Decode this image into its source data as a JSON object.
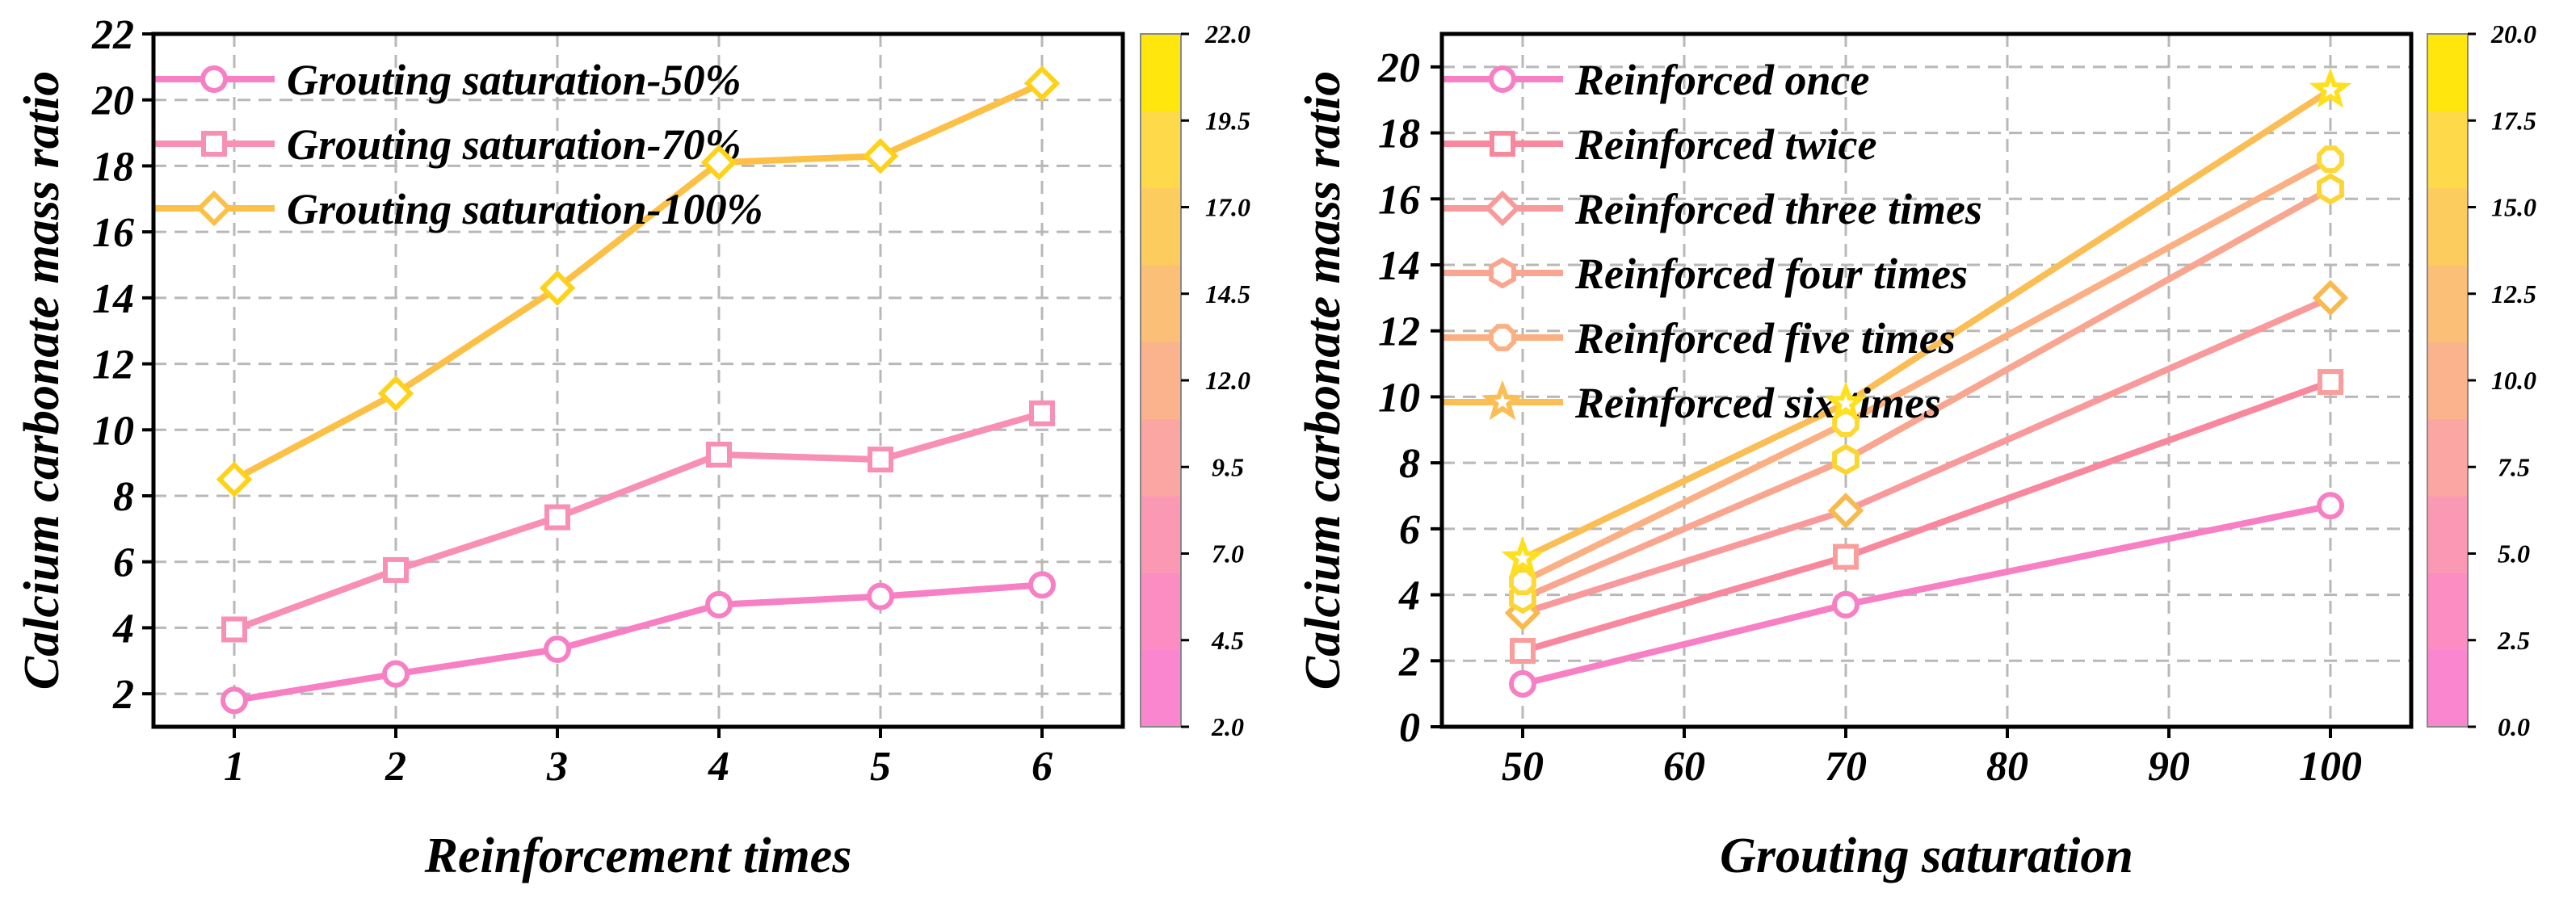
{
  "chart_data": [
    {
      "type": "line",
      "xlabel": "Reinforcement times",
      "ylabel": "Calcium carbonate mass ratio",
      "x": [
        1,
        2,
        3,
        4,
        5,
        6
      ],
      "xlim": [
        0.5,
        6.5
      ],
      "ylim": [
        1,
        22
      ],
      "xticks": [
        "1",
        "2",
        "3",
        "4",
        "5",
        "6"
      ],
      "yticks": [
        "2",
        "4",
        "6",
        "8",
        "10",
        "12",
        "14",
        "16",
        "18",
        "20",
        "22"
      ],
      "grid": true,
      "legend_position": "top-left",
      "series": [
        {
          "name": "Grouting saturation-50%",
          "marker": "circle",
          "values": [
            1.8,
            2.6,
            3.35,
            4.7,
            4.95,
            5.3
          ]
        },
        {
          "name": "Grouting saturation-70%",
          "marker": "square",
          "values": [
            3.95,
            5.75,
            7.35,
            9.25,
            9.1,
            10.5
          ]
        },
        {
          "name": "Grouting saturation-100%",
          "marker": "diamond",
          "values": [
            8.5,
            11.1,
            14.3,
            18.1,
            18.3,
            20.5
          ]
        }
      ],
      "colorbar": {
        "min": 2.0,
        "max": 22.0,
        "ticks": [
          "2.0",
          "4.5",
          "7.0",
          "9.5",
          "12.0",
          "14.5",
          "17.0",
          "19.5",
          "22.0"
        ]
      }
    },
    {
      "type": "line",
      "xlabel": "Grouting saturation",
      "ylabel": "Calcium carbonate mass ratio",
      "x": [
        50,
        70,
        100
      ],
      "xlim": [
        45,
        105
      ],
      "ylim": [
        0,
        21
      ],
      "xticks": [
        "50",
        "60",
        "70",
        "80",
        "90",
        "100"
      ],
      "yticks": [
        "0",
        "2",
        "4",
        "6",
        "8",
        "10",
        "12",
        "14",
        "16",
        "18",
        "20"
      ],
      "grid": true,
      "legend_position": "top-left",
      "series": [
        {
          "name": "Reinforced once",
          "marker": "circle",
          "values": [
            1.3,
            3.7,
            6.7
          ]
        },
        {
          "name": "Reinforced twice",
          "marker": "square",
          "values": [
            2.3,
            5.15,
            10.45
          ]
        },
        {
          "name": "Reinforced three times",
          "marker": "diamond",
          "values": [
            3.45,
            6.55,
            13.0
          ]
        },
        {
          "name": "Reinforced four times",
          "marker": "hexagon",
          "values": [
            3.9,
            8.1,
            16.3
          ]
        },
        {
          "name": "Reinforced five times",
          "marker": "octagon",
          "values": [
            4.4,
            9.2,
            17.2
          ]
        },
        {
          "name": "Reinforced six times",
          "marker": "star",
          "values": [
            5.1,
            9.8,
            19.3
          ]
        }
      ],
      "colorbar": {
        "min": 0.0,
        "max": 20.0,
        "ticks": [
          "0.0",
          "2.5",
          "5.0",
          "7.5",
          "10.0",
          "12.5",
          "15.0",
          "17.5",
          "20.0"
        ]
      }
    }
  ]
}
